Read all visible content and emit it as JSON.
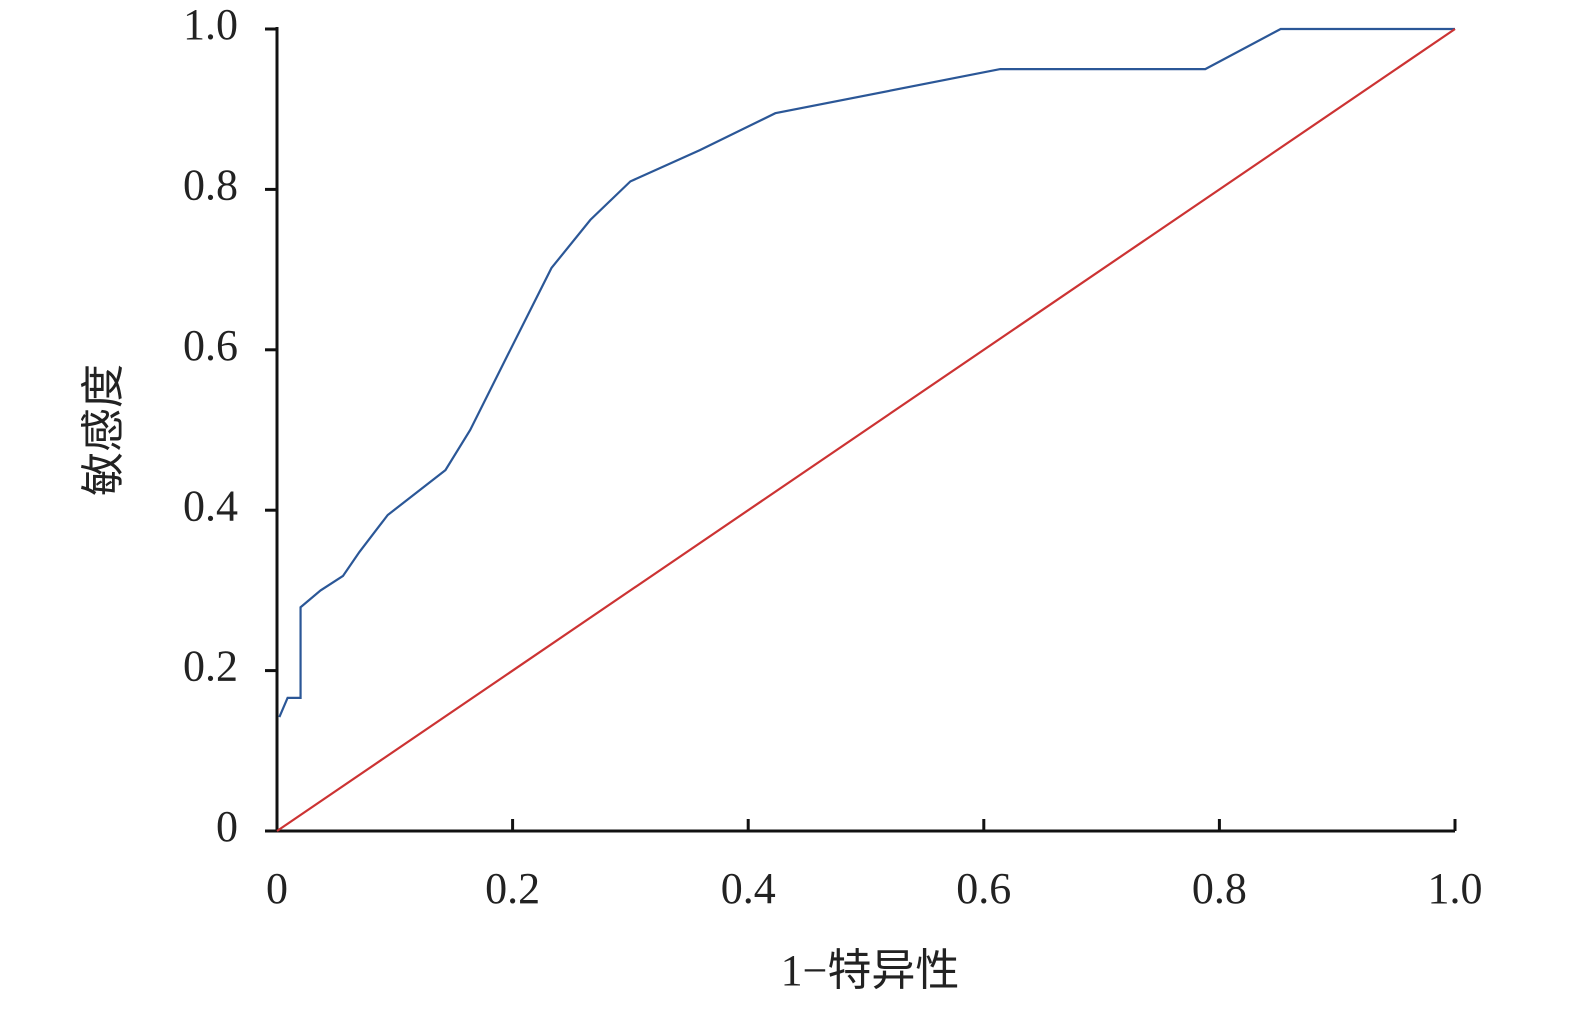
{
  "chart_data": {
    "type": "line",
    "xlabel": "1−特异性",
    "ylabel": "敏感度",
    "xlim": [
      0,
      1
    ],
    "ylim": [
      0,
      1
    ],
    "xticks": [
      0,
      0.2,
      0.4,
      0.6,
      0.8,
      {
        "value": 1,
        "label": "1.0"
      }
    ],
    "yticks": [
      0,
      0.2,
      0.4,
      0.6,
      0.8,
      {
        "value": 1,
        "label": "1.0"
      }
    ],
    "series": [
      {
        "color": "#2b5797",
        "x": [
          0.002,
          0.009,
          0.02,
          0.02,
          0.037,
          0.056,
          0.07,
          0.094,
          0.143,
          0.164,
          0.196,
          0.233,
          0.266,
          0.3,
          0.359,
          0.423,
          0.614,
          0.788,
          0.852,
          1
        ],
        "values": [
          0.142,
          0.166,
          0.166,
          0.279,
          0.3,
          0.318,
          0.348,
          0.394,
          0.45,
          0.5,
          0.594,
          0.702,
          0.762,
          0.81,
          0.849,
          0.895,
          0.95,
          0.95,
          1,
          1
        ]
      },
      {
        "color": "#cc3333",
        "x": [
          0,
          1
        ],
        "values": [
          0,
          1
        ]
      }
    ]
  }
}
